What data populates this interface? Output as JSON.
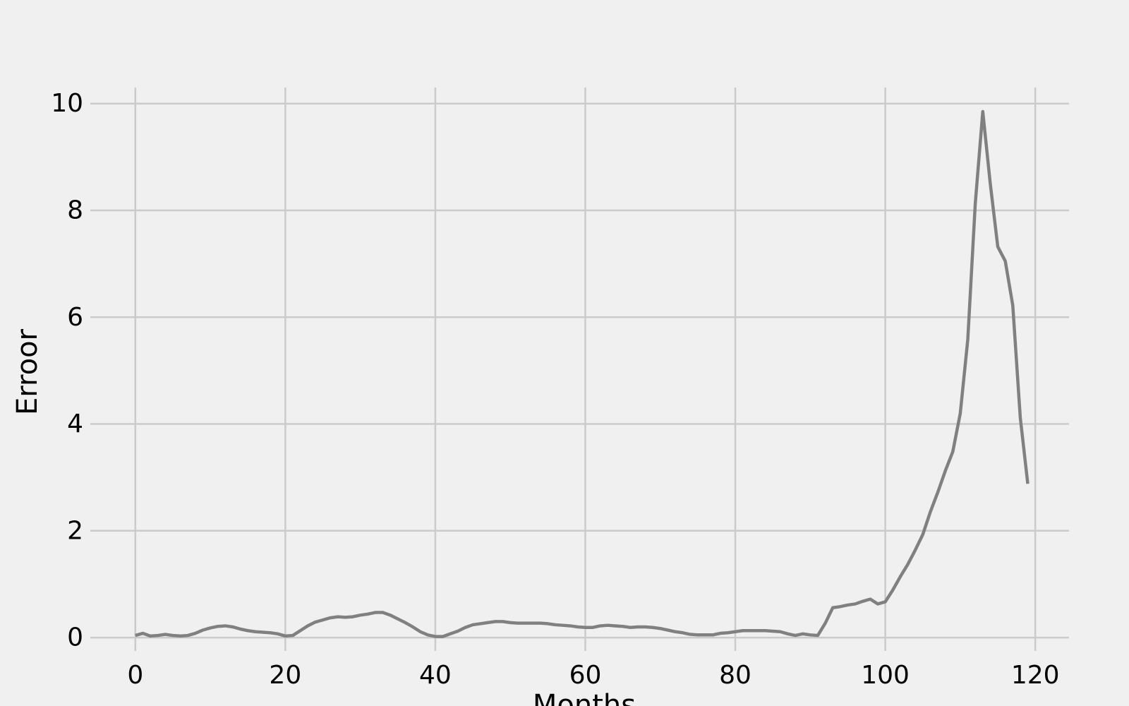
{
  "chart_data": {
    "type": "line",
    "title": "",
    "xlabel": "Months",
    "ylabel": "Erroor",
    "xlim": [
      -6,
      124.5
    ],
    "ylim": [
      -0.25,
      10.3
    ],
    "xticks": [
      0,
      20,
      40,
      60,
      80,
      100,
      120
    ],
    "yticks": [
      0,
      2,
      4,
      6,
      8,
      10
    ],
    "grid": true,
    "line_color": "#808080",
    "background": "#f0f0f0",
    "grid_color": "#cbcbcb",
    "series": [
      {
        "x": [
          0,
          1,
          2,
          3,
          4,
          5,
          6,
          7,
          8,
          9,
          10,
          11,
          12,
          13,
          14,
          15,
          16,
          17,
          18,
          19,
          20,
          21,
          22,
          23,
          24,
          25,
          26,
          27,
          28,
          29,
          30,
          31,
          32,
          33,
          34,
          35,
          36,
          37,
          38,
          39,
          40,
          41,
          42,
          43,
          44,
          45,
          46,
          47,
          48,
          49,
          50,
          51,
          52,
          53,
          54,
          55,
          56,
          57,
          58,
          59,
          60,
          61,
          62,
          63,
          64,
          65,
          66,
          67,
          68,
          69,
          70,
          71,
          72,
          73,
          74,
          75,
          76,
          77,
          78,
          79,
          80,
          81,
          82,
          83,
          84,
          85,
          86,
          87,
          88,
          89,
          90,
          91,
          92,
          93,
          94,
          95,
          96,
          97,
          98,
          99,
          100,
          101,
          102,
          103,
          104,
          105,
          106,
          107,
          108,
          109,
          110,
          111,
          112,
          113,
          114,
          115,
          116,
          117,
          118,
          119
        ],
        "values": [
          0.04,
          0.08,
          0.03,
          0.04,
          0.06,
          0.04,
          0.03,
          0.04,
          0.08,
          0.14,
          0.18,
          0.21,
          0.22,
          0.2,
          0.16,
          0.13,
          0.11,
          0.1,
          0.09,
          0.07,
          0.03,
          0.04,
          0.13,
          0.22,
          0.29,
          0.33,
          0.37,
          0.39,
          0.38,
          0.39,
          0.42,
          0.44,
          0.47,
          0.47,
          0.42,
          0.35,
          0.28,
          0.2,
          0.11,
          0.05,
          0.02,
          0.02,
          0.07,
          0.12,
          0.19,
          0.24,
          0.26,
          0.28,
          0.3,
          0.3,
          0.28,
          0.27,
          0.27,
          0.27,
          0.27,
          0.26,
          0.24,
          0.23,
          0.22,
          0.2,
          0.19,
          0.19,
          0.22,
          0.23,
          0.22,
          0.21,
          0.19,
          0.2,
          0.2,
          0.19,
          0.17,
          0.14,
          0.11,
          0.09,
          0.06,
          0.05,
          0.05,
          0.05,
          0.08,
          0.09,
          0.11,
          0.13,
          0.13,
          0.13,
          0.13,
          0.12,
          0.11,
          0.07,
          0.04,
          0.07,
          0.05,
          0.04,
          0.27,
          0.56,
          0.58,
          0.61,
          0.63,
          0.68,
          0.72,
          0.63,
          0.67,
          0.89,
          1.14,
          1.37,
          1.64,
          1.93,
          2.35,
          2.72,
          3.12,
          3.48,
          4.2,
          5.58,
          8.13,
          9.85,
          8.5,
          7.32,
          7.05,
          6.22,
          4.12,
          2.88
        ]
      }
    ]
  }
}
